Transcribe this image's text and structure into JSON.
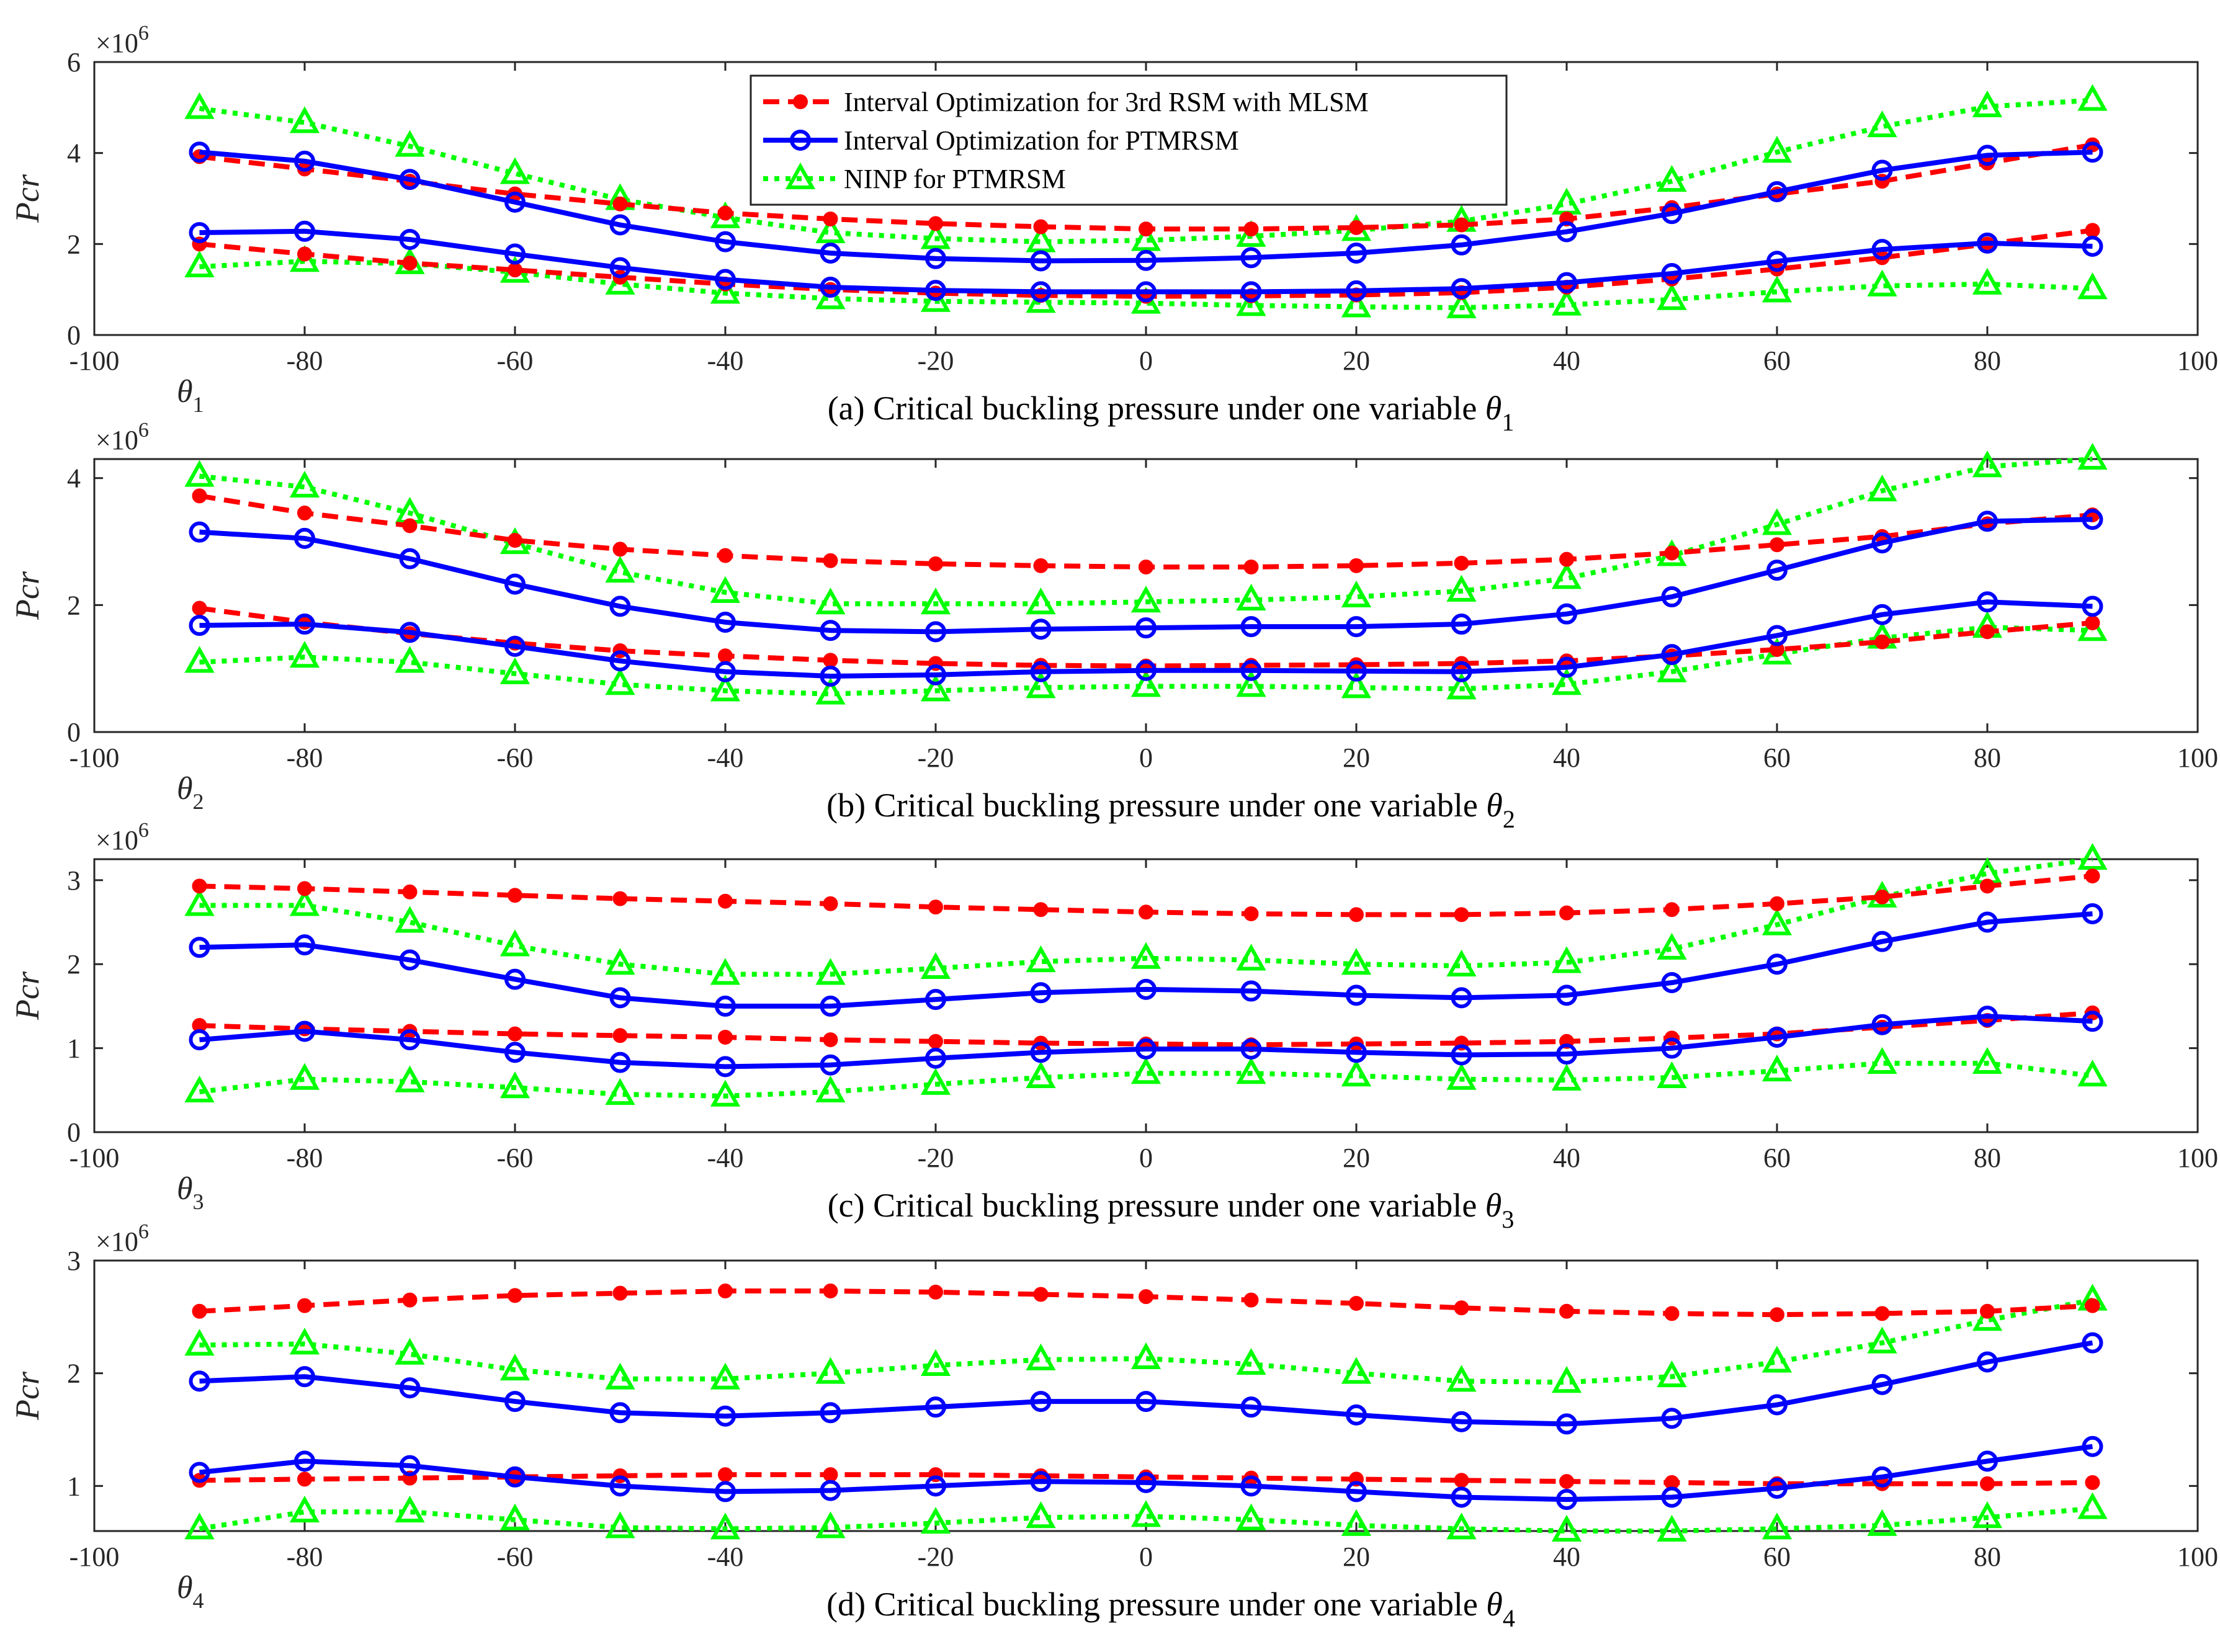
{
  "legend": {
    "series": [
      {
        "name": "Interval Optimization for 3rd RSM with MLSM",
        "color": "#ff0000",
        "style": "dashed",
        "marker": "dot"
      },
      {
        "name": "Interval Optimization for PTMRSM",
        "color": "#0000ff",
        "style": "solid",
        "marker": "circle"
      },
      {
        "name": "NINP for PTMRSM",
        "color": "#00ff00",
        "style": "dotted",
        "marker": "triangle"
      }
    ]
  },
  "chart_data": [
    {
      "type": "line",
      "caption": "(a) Critical buckling pressure under one variable θ1",
      "caption_text": "(a) Critical buckling pressure under one variable ",
      "caption_var": "θ",
      "caption_sub": "1",
      "xvar": "θ",
      "xvar_sub": "1",
      "ylabel": "Pcr",
      "exponent_base": "×10",
      "exponent_power": "6",
      "xlim": [
        -100,
        100
      ],
      "ylim": [
        0,
        6
      ],
      "xticks": [
        -100,
        -80,
        -60,
        -40,
        -20,
        0,
        20,
        40,
        60,
        80,
        100
      ],
      "yticks": [
        0,
        2,
        4,
        6
      ],
      "legend_position": "top-center",
      "x": [
        -90,
        -80,
        -70,
        -60,
        -50,
        -40,
        -30,
        -20,
        -10,
        0,
        10,
        20,
        30,
        40,
        50,
        60,
        70,
        80,
        90
      ],
      "series": [
        {
          "legend": 0,
          "bound": "upper",
          "values": [
            3.92,
            3.65,
            3.38,
            3.1,
            2.88,
            2.68,
            2.55,
            2.45,
            2.38,
            2.33,
            2.33,
            2.36,
            2.42,
            2.55,
            2.8,
            3.1,
            3.38,
            3.78,
            4.18
          ]
        },
        {
          "legend": 0,
          "bound": "lower",
          "values": [
            2.0,
            1.78,
            1.58,
            1.43,
            1.27,
            1.12,
            1.0,
            0.92,
            0.87,
            0.85,
            0.86,
            0.88,
            0.93,
            1.05,
            1.23,
            1.45,
            1.7,
            2.0,
            2.3
          ]
        },
        {
          "legend": 1,
          "bound": "upper",
          "values": [
            4.02,
            3.82,
            3.42,
            2.92,
            2.42,
            2.05,
            1.8,
            1.68,
            1.63,
            1.64,
            1.7,
            1.8,
            1.98,
            2.27,
            2.67,
            3.15,
            3.62,
            3.95,
            4.02
          ]
        },
        {
          "legend": 1,
          "bound": "lower",
          "values": [
            2.25,
            2.28,
            2.1,
            1.78,
            1.48,
            1.22,
            1.05,
            0.98,
            0.95,
            0.95,
            0.95,
            0.97,
            1.02,
            1.15,
            1.35,
            1.62,
            1.88,
            2.02,
            1.95
          ]
        },
        {
          "legend": 2,
          "bound": "upper",
          "values": [
            4.98,
            4.67,
            4.15,
            3.55,
            2.98,
            2.58,
            2.25,
            2.12,
            2.05,
            2.08,
            2.17,
            2.3,
            2.5,
            2.88,
            3.38,
            4.02,
            4.58,
            5.02,
            5.16
          ]
        },
        {
          "legend": 2,
          "bound": "lower",
          "values": [
            1.5,
            1.62,
            1.57,
            1.38,
            1.12,
            0.92,
            0.8,
            0.74,
            0.72,
            0.7,
            0.65,
            0.62,
            0.6,
            0.66,
            0.78,
            0.95,
            1.08,
            1.12,
            1.02
          ]
        }
      ]
    },
    {
      "type": "line",
      "caption": "(b) Critical buckling pressure under one variable θ2",
      "caption_text": "(b) Critical buckling pressure under one variable ",
      "caption_var": "θ",
      "caption_sub": "2",
      "xvar": "θ",
      "xvar_sub": "2",
      "ylabel": "Pcr",
      "exponent_base": "×10",
      "exponent_power": "6",
      "xlim": [
        -100,
        100
      ],
      "ylim": [
        0,
        4.3
      ],
      "xticks": [
        -100,
        -80,
        -60,
        -40,
        -20,
        0,
        20,
        40,
        60,
        80,
        100
      ],
      "yticks": [
        0,
        2,
        4
      ],
      "x": [
        -90,
        -80,
        -70,
        -60,
        -50,
        -40,
        -30,
        -20,
        -10,
        0,
        10,
        20,
        30,
        40,
        50,
        60,
        70,
        80,
        90
      ],
      "series": [
        {
          "legend": 0,
          "bound": "upper",
          "values": [
            3.72,
            3.45,
            3.25,
            3.02,
            2.88,
            2.78,
            2.7,
            2.65,
            2.62,
            2.6,
            2.6,
            2.62,
            2.66,
            2.72,
            2.82,
            2.95,
            3.08,
            3.28,
            3.42
          ]
        },
        {
          "legend": 0,
          "bound": "lower",
          "values": [
            1.95,
            1.73,
            1.55,
            1.4,
            1.28,
            1.2,
            1.13,
            1.08,
            1.05,
            1.04,
            1.05,
            1.06,
            1.08,
            1.12,
            1.2,
            1.3,
            1.42,
            1.58,
            1.72
          ]
        },
        {
          "legend": 1,
          "bound": "upper",
          "values": [
            3.15,
            3.05,
            2.73,
            2.33,
            1.98,
            1.73,
            1.6,
            1.58,
            1.62,
            1.64,
            1.66,
            1.66,
            1.7,
            1.86,
            2.13,
            2.55,
            2.98,
            3.32,
            3.35
          ]
        },
        {
          "legend": 1,
          "bound": "lower",
          "values": [
            1.68,
            1.7,
            1.57,
            1.35,
            1.12,
            0.95,
            0.88,
            0.9,
            0.95,
            0.97,
            0.97,
            0.96,
            0.95,
            1.02,
            1.22,
            1.52,
            1.85,
            2.05,
            1.98
          ]
        },
        {
          "legend": 2,
          "bound": "upper",
          "values": [
            4.03,
            3.86,
            3.45,
            2.97,
            2.52,
            2.2,
            2.02,
            2.02,
            2.02,
            2.05,
            2.08,
            2.13,
            2.22,
            2.42,
            2.78,
            3.27,
            3.8,
            4.18,
            4.3
          ]
        },
        {
          "legend": 2,
          "bound": "lower",
          "values": [
            1.1,
            1.18,
            1.1,
            0.92,
            0.75,
            0.65,
            0.6,
            0.65,
            0.7,
            0.72,
            0.72,
            0.7,
            0.68,
            0.75,
            0.95,
            1.23,
            1.48,
            1.65,
            1.6
          ]
        }
      ]
    },
    {
      "type": "line",
      "caption": "(c) Critical buckling pressure under one variable θ3",
      "caption_text": "(c) Critical buckling pressure under one variable ",
      "caption_var": "θ",
      "caption_sub": "3",
      "xvar": "θ",
      "xvar_sub": "3",
      "ylabel": "Pcr",
      "exponent_base": "×10",
      "exponent_power": "6",
      "xlim": [
        -100,
        100
      ],
      "ylim": [
        0,
        3.25
      ],
      "xticks": [
        -100,
        -80,
        -60,
        -40,
        -20,
        0,
        20,
        40,
        60,
        80,
        100
      ],
      "yticks": [
        0,
        1,
        2,
        3
      ],
      "x": [
        -90,
        -80,
        -70,
        -60,
        -50,
        -40,
        -30,
        -20,
        -10,
        0,
        10,
        20,
        30,
        40,
        50,
        60,
        70,
        80,
        90
      ],
      "series": [
        {
          "legend": 0,
          "bound": "upper",
          "values": [
            2.93,
            2.9,
            2.86,
            2.82,
            2.78,
            2.75,
            2.72,
            2.68,
            2.65,
            2.62,
            2.6,
            2.59,
            2.59,
            2.61,
            2.65,
            2.72,
            2.8,
            2.93,
            3.05
          ]
        },
        {
          "legend": 0,
          "bound": "lower",
          "values": [
            1.27,
            1.23,
            1.2,
            1.17,
            1.15,
            1.13,
            1.1,
            1.08,
            1.06,
            1.05,
            1.04,
            1.05,
            1.06,
            1.08,
            1.12,
            1.17,
            1.25,
            1.33,
            1.42
          ]
        },
        {
          "legend": 1,
          "bound": "upper",
          "values": [
            2.2,
            2.23,
            2.05,
            1.82,
            1.6,
            1.5,
            1.5,
            1.58,
            1.66,
            1.7,
            1.68,
            1.63,
            1.6,
            1.63,
            1.78,
            2.0,
            2.27,
            2.5,
            2.6
          ]
        },
        {
          "legend": 1,
          "bound": "lower",
          "values": [
            1.1,
            1.2,
            1.1,
            0.95,
            0.83,
            0.78,
            0.8,
            0.88,
            0.95,
            0.99,
            0.99,
            0.95,
            0.92,
            0.93,
            1.0,
            1.13,
            1.28,
            1.38,
            1.32
          ]
        },
        {
          "legend": 2,
          "bound": "upper",
          "values": [
            2.7,
            2.7,
            2.5,
            2.22,
            2.0,
            1.88,
            1.88,
            1.95,
            2.03,
            2.07,
            2.05,
            2.0,
            1.98,
            2.02,
            2.18,
            2.47,
            2.8,
            3.08,
            3.25
          ]
        },
        {
          "legend": 2,
          "bound": "lower",
          "values": [
            0.48,
            0.63,
            0.6,
            0.53,
            0.45,
            0.43,
            0.48,
            0.57,
            0.65,
            0.7,
            0.7,
            0.67,
            0.63,
            0.62,
            0.65,
            0.73,
            0.82,
            0.82,
            0.67
          ]
        }
      ]
    },
    {
      "type": "line",
      "caption": "(d) Critical buckling pressure under one variable θ4",
      "caption_text": "(d) Critical buckling pressure under one variable ",
      "caption_var": "θ",
      "caption_sub": "4",
      "xvar": "θ",
      "xvar_sub": "4",
      "ylabel": "Pcr",
      "exponent_base": "×10",
      "exponent_power": "6",
      "xlim": [
        -100,
        100
      ],
      "ylim": [
        0.6,
        3.0
      ],
      "xticks": [
        -100,
        -80,
        -60,
        -40,
        -20,
        0,
        20,
        40,
        60,
        80,
        100
      ],
      "yticks": [
        1,
        2,
        3
      ],
      "x": [
        -90,
        -80,
        -70,
        -60,
        -50,
        -40,
        -30,
        -20,
        -10,
        0,
        10,
        20,
        30,
        40,
        50,
        60,
        70,
        80,
        90
      ],
      "series": [
        {
          "legend": 0,
          "bound": "upper",
          "values": [
            2.55,
            2.6,
            2.65,
            2.69,
            2.71,
            2.73,
            2.73,
            2.72,
            2.7,
            2.68,
            2.65,
            2.62,
            2.58,
            2.55,
            2.53,
            2.52,
            2.53,
            2.55,
            2.6
          ]
        },
        {
          "legend": 0,
          "bound": "lower",
          "values": [
            1.05,
            1.06,
            1.07,
            1.08,
            1.09,
            1.1,
            1.1,
            1.1,
            1.09,
            1.08,
            1.07,
            1.06,
            1.05,
            1.04,
            1.03,
            1.02,
            1.02,
            1.02,
            1.03
          ]
        },
        {
          "legend": 1,
          "bound": "upper",
          "values": [
            1.93,
            1.97,
            1.87,
            1.75,
            1.65,
            1.62,
            1.65,
            1.7,
            1.75,
            1.75,
            1.7,
            1.63,
            1.57,
            1.55,
            1.6,
            1.72,
            1.9,
            2.1,
            2.27
          ]
        },
        {
          "legend": 1,
          "bound": "lower",
          "values": [
            1.12,
            1.22,
            1.18,
            1.08,
            1.0,
            0.95,
            0.96,
            1.0,
            1.04,
            1.03,
            1.0,
            0.95,
            0.9,
            0.88,
            0.9,
            0.98,
            1.08,
            1.22,
            1.35
          ]
        },
        {
          "legend": 2,
          "bound": "upper",
          "values": [
            2.25,
            2.26,
            2.17,
            2.03,
            1.95,
            1.95,
            2.0,
            2.07,
            2.12,
            2.13,
            2.08,
            2.0,
            1.93,
            1.92,
            1.97,
            2.1,
            2.27,
            2.47,
            2.65
          ]
        },
        {
          "legend": 2,
          "bound": "lower",
          "values": [
            0.62,
            0.77,
            0.77,
            0.7,
            0.63,
            0.62,
            0.63,
            0.67,
            0.72,
            0.73,
            0.7,
            0.65,
            0.62,
            0.6,
            0.6,
            0.62,
            0.65,
            0.72,
            0.8
          ]
        }
      ]
    }
  ]
}
